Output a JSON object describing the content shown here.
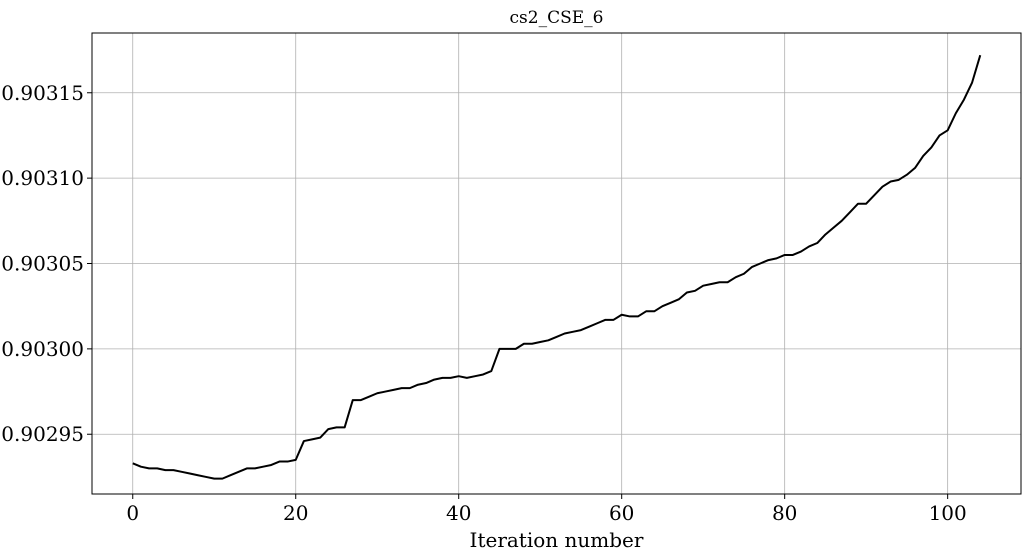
{
  "chart_data": {
    "type": "line",
    "title": "cs2_CSE_6",
    "xlabel": "Iteration number",
    "ylabel": "",
    "xlim": [
      -5,
      109
    ],
    "ylim": [
      0.902915,
      0.903185
    ],
    "grid": true,
    "line_color": "#000000",
    "x_ticks": [
      0,
      20,
      40,
      60,
      80,
      100
    ],
    "x_tick_labels": [
      "0",
      "20",
      "40",
      "60",
      "80",
      "100"
    ],
    "y_ticks": [
      0.90295,
      0.903,
      0.90305,
      0.9031,
      0.90315
    ],
    "y_tick_labels": [
      "0.90295",
      "0.90300",
      "0.90305",
      "0.90310",
      "0.90315"
    ],
    "series": [
      {
        "values": [
          0.902933,
          0.902931,
          0.90293,
          0.90293,
          0.902929,
          0.902929,
          0.902928,
          0.902927,
          0.902926,
          0.902925,
          0.902924,
          0.902924,
          0.902926,
          0.902928,
          0.90293,
          0.90293,
          0.902931,
          0.902932,
          0.902934,
          0.902934,
          0.902935,
          0.902946,
          0.902947,
          0.902948,
          0.902953,
          0.902954,
          0.902954,
          0.90297,
          0.90297,
          0.902972,
          0.902974,
          0.902975,
          0.902976,
          0.902977,
          0.902977,
          0.902979,
          0.90298,
          0.902982,
          0.902983,
          0.902983,
          0.902984,
          0.902983,
          0.902984,
          0.902985,
          0.902987,
          0.903,
          0.903,
          0.903,
          0.903003,
          0.903003,
          0.903004,
          0.903005,
          0.903007,
          0.903009,
          0.90301,
          0.903011,
          0.903013,
          0.903015,
          0.903017,
          0.903017,
          0.90302,
          0.903019,
          0.903019,
          0.903022,
          0.903022,
          0.903025,
          0.903027,
          0.903029,
          0.903033,
          0.903034,
          0.903037,
          0.903038,
          0.903039,
          0.903039,
          0.903042,
          0.903044,
          0.903048,
          0.90305,
          0.903052,
          0.903053,
          0.903055,
          0.903055,
          0.903057,
          0.90306,
          0.903062,
          0.903067,
          0.903071,
          0.903075,
          0.90308,
          0.903085,
          0.903085,
          0.90309,
          0.903095,
          0.903098,
          0.903099,
          0.903102,
          0.903106,
          0.903113,
          0.903118,
          0.903125,
          0.903128,
          0.903138,
          0.903146,
          0.903156,
          0.903172
        ]
      }
    ]
  }
}
